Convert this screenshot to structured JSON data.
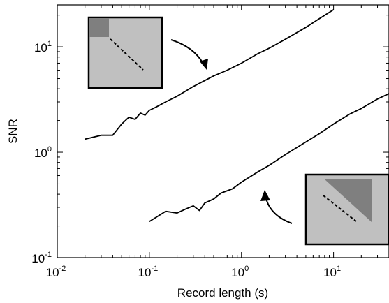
{
  "chart_data": {
    "type": "line",
    "title": "",
    "xlabel": "Record length (s)",
    "ylabel": "SNR",
    "xscale": "log",
    "yscale": "log",
    "xlim": [
      0.01,
      40
    ],
    "ylim": [
      0.1,
      25
    ],
    "grid": false,
    "legend": "none",
    "x_ticks": [
      {
        "value": 0.01,
        "base": "10",
        "exp": "-2"
      },
      {
        "value": 0.1,
        "base": "10",
        "exp": "-1"
      },
      {
        "value": 1,
        "base": "10",
        "exp": "0"
      },
      {
        "value": 10,
        "base": "10",
        "exp": "1"
      }
    ],
    "y_ticks": [
      {
        "value": 0.1,
        "base": "10",
        "exp": "-1"
      },
      {
        "value": 1,
        "base": "10",
        "exp": "0"
      },
      {
        "value": 10,
        "base": "10",
        "exp": "1"
      }
    ],
    "series": [
      {
        "color": "#000000",
        "points": [
          [
            0.02,
            1.33
          ],
          [
            0.03,
            1.45
          ],
          [
            0.04,
            1.45
          ],
          [
            0.05,
            1.85
          ],
          [
            0.06,
            2.15
          ],
          [
            0.07,
            2.05
          ],
          [
            0.08,
            2.35
          ],
          [
            0.09,
            2.25
          ],
          [
            0.1,
            2.5
          ],
          [
            0.12,
            2.7
          ],
          [
            0.15,
            3.0
          ],
          [
            0.2,
            3.4
          ],
          [
            0.3,
            4.2
          ],
          [
            0.5,
            5.3
          ],
          [
            0.7,
            6.0
          ],
          [
            1,
            7.0
          ],
          [
            1.5,
            8.6
          ],
          [
            2,
            9.7
          ],
          [
            3,
            11.8
          ],
          [
            5,
            15.3
          ],
          [
            7,
            18.5
          ],
          [
            10,
            22.5
          ]
        ]
      },
      {
        "color": "#000000",
        "points": [
          [
            0.1,
            0.22
          ],
          [
            0.15,
            0.275
          ],
          [
            0.2,
            0.265
          ],
          [
            0.25,
            0.29
          ],
          [
            0.3,
            0.31
          ],
          [
            0.35,
            0.28
          ],
          [
            0.4,
            0.33
          ],
          [
            0.5,
            0.36
          ],
          [
            0.6,
            0.41
          ],
          [
            0.8,
            0.45
          ],
          [
            1,
            0.52
          ],
          [
            1.5,
            0.65
          ],
          [
            2,
            0.75
          ],
          [
            3,
            0.95
          ],
          [
            5,
            1.25
          ],
          [
            7,
            1.5
          ],
          [
            10,
            1.85
          ],
          [
            15,
            2.3
          ],
          [
            20,
            2.6
          ],
          [
            30,
            3.2
          ],
          [
            40,
            3.6
          ]
        ]
      }
    ],
    "annotations": [
      {
        "type": "inset",
        "pattern": "top-left-square",
        "points_to_series": 0
      },
      {
        "type": "inset",
        "pattern": "upper-triangle",
        "points_to_series": 1
      }
    ],
    "colors": {
      "line": "#000000",
      "inset_fill": "#c0c0c0",
      "inset_dark": "#7f7f7f"
    }
  }
}
